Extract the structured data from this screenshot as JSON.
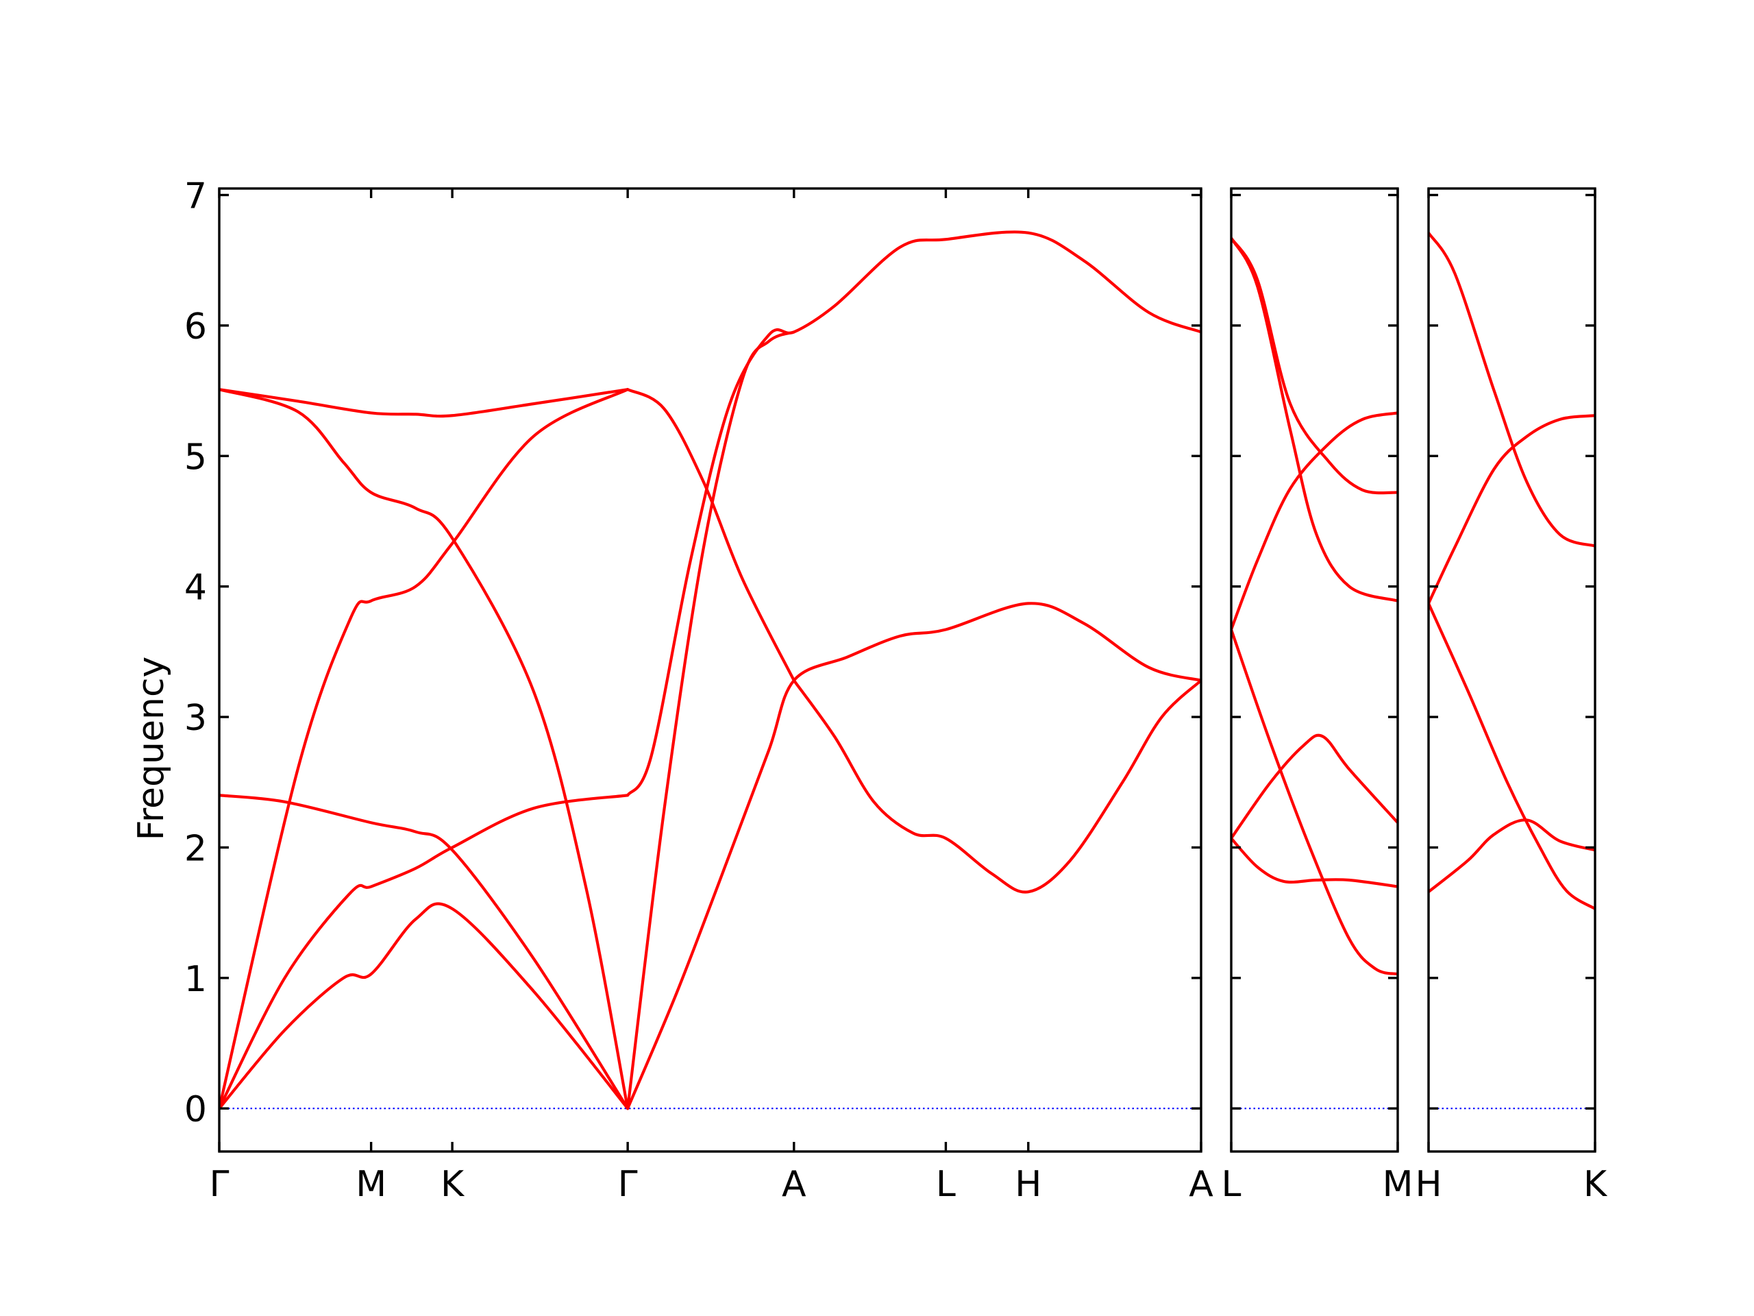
{
  "chart_data": {
    "type": "line",
    "ylabel": "Frequency",
    "ylim": [
      -0.33,
      7.05
    ],
    "yticks": [
      0,
      1,
      2,
      3,
      4,
      5,
      6,
      7
    ],
    "grid": false,
    "legend": "none",
    "colors": {
      "bands": "#ff0000",
      "zero_line": "#0000ff",
      "axes": "#000000"
    },
    "panels": [
      {
        "id": "p1",
        "xlim": [
          0,
          7.5
        ],
        "labels": [
          {
            "x": 0,
            "text": "Γ"
          },
          {
            "x": 1.16,
            "text": "M"
          },
          {
            "x": 1.78,
            "text": "K"
          },
          {
            "x": 3.12,
            "text": "Γ"
          },
          {
            "x": 4.39,
            "text": "A"
          },
          {
            "x": 5.55,
            "text": "L"
          },
          {
            "x": 6.18,
            "text": "H"
          },
          {
            "x": 7.5,
            "text": "A"
          }
        ],
        "series": [
          {
            "values": [
              [
                0,
                5.51
              ],
              [
                0.6,
                5.42
              ],
              [
                1.16,
                5.33
              ],
              [
                1.5,
                5.32
              ],
              [
                1.78,
                5.31
              ],
              [
                2.4,
                5.4
              ],
              [
                3.12,
                5.51
              ]
            ]
          },
          {
            "values": [
              [
                0,
                5.51
              ],
              [
                0.6,
                5.34
              ],
              [
                0.95,
                4.95
              ],
              [
                1.16,
                4.72
              ],
              [
                1.5,
                4.6
              ],
              [
                1.78,
                4.37
              ],
              [
                2.4,
                3.2
              ],
              [
                2.8,
                1.7
              ],
              [
                3.12,
                0
              ]
            ]
          },
          {
            "values": [
              [
                0,
                0
              ],
              [
                0.6,
                2.6
              ],
              [
                1.0,
                3.75
              ],
              [
                1.16,
                3.89
              ],
              [
                1.5,
                4.0
              ],
              [
                1.78,
                4.33
              ],
              [
                2.4,
                5.15
              ],
              [
                3.12,
                5.51
              ]
            ]
          },
          {
            "values": [
              [
                0,
                2.4
              ],
              [
                0.5,
                2.35
              ],
              [
                1.16,
                2.19
              ],
              [
                1.5,
                2.12
              ],
              [
                1.78,
                1.98
              ],
              [
                2.4,
                1.15
              ],
              [
                3.12,
                0
              ]
            ]
          },
          {
            "values": [
              [
                0,
                0
              ],
              [
                0.5,
                1.0
              ],
              [
                1.0,
                1.65
              ],
              [
                1.16,
                1.7
              ],
              [
                1.5,
                1.84
              ],
              [
                1.78,
                2.0
              ],
              [
                2.4,
                2.3
              ],
              [
                3.12,
                2.4
              ]
            ]
          },
          {
            "values": [
              [
                0,
                0
              ],
              [
                0.5,
                0.6
              ],
              [
                0.95,
                1.0
              ],
              [
                1.16,
                1.03
              ],
              [
                1.5,
                1.45
              ],
              [
                1.78,
                1.53
              ],
              [
                2.4,
                0.9
              ],
              [
                3.12,
                0
              ]
            ]
          },
          {
            "values": [
              [
                3.12,
                5.51
              ],
              [
                3.4,
                5.36
              ],
              [
                3.7,
                4.8
              ],
              [
                4.0,
                4.05
              ],
              [
                4.39,
                3.28
              ]
            ]
          },
          {
            "values": [
              [
                3.12,
                2.4
              ],
              [
                3.3,
                2.7
              ],
              [
                3.6,
                4.2
              ],
              [
                3.9,
                5.4
              ],
              [
                4.2,
                5.93
              ],
              [
                4.39,
                5.95
              ],
              [
                4.7,
                6.15
              ],
              [
                5.2,
                6.6
              ],
              [
                5.55,
                6.66
              ],
              [
                6.18,
                6.71
              ],
              [
                6.6,
                6.5
              ],
              [
                7.1,
                6.1
              ],
              [
                7.5,
                5.95
              ]
            ]
          },
          {
            "values": [
              [
                3.12,
                0
              ],
              [
                3.4,
                2.3
              ],
              [
                3.7,
                4.3
              ],
              [
                4.0,
                5.6
              ],
              [
                4.2,
                5.88
              ],
              [
                4.39,
                5.95
              ]
            ]
          },
          {
            "values": [
              [
                3.12,
                0
              ],
              [
                3.5,
                0.9
              ],
              [
                3.9,
                1.95
              ],
              [
                4.2,
                2.75
              ],
              [
                4.39,
                3.28
              ],
              [
                4.8,
                3.46
              ],
              [
                5.2,
                3.62
              ],
              [
                5.55,
                3.67
              ],
              [
                6.18,
                3.87
              ],
              [
                6.6,
                3.72
              ],
              [
                7.1,
                3.38
              ],
              [
                7.5,
                3.28
              ]
            ]
          },
          {
            "values": [
              [
                4.39,
                3.28
              ],
              [
                4.7,
                2.85
              ],
              [
                5.0,
                2.35
              ],
              [
                5.3,
                2.11
              ],
              [
                5.55,
                2.07
              ],
              [
                5.9,
                1.8
              ],
              [
                6.18,
                1.66
              ],
              [
                6.5,
                1.9
              ],
              [
                6.9,
                2.5
              ],
              [
                7.2,
                3.0
              ],
              [
                7.5,
                3.28
              ]
            ]
          }
        ]
      },
      {
        "id": "p2",
        "xlim": [
          0,
          1.27
        ],
        "labels": [
          {
            "x": 0,
            "text": "L"
          },
          {
            "x": 1.27,
            "text": "M"
          }
        ],
        "series": [
          {
            "values": [
              [
                0,
                6.67
              ],
              [
                0.2,
                6.35
              ],
              [
                0.45,
                5.4
              ],
              [
                0.75,
                4.95
              ],
              [
                1.0,
                4.74
              ],
              [
                1.27,
                4.72
              ]
            ]
          },
          {
            "values": [
              [
                0,
                6.67
              ],
              [
                0.2,
                6.3
              ],
              [
                0.45,
                5.2
              ],
              [
                0.65,
                4.4
              ],
              [
                0.9,
                4.0
              ],
              [
                1.27,
                3.89
              ]
            ]
          },
          {
            "values": [
              [
                0,
                3.67
              ],
              [
                0.2,
                4.2
              ],
              [
                0.45,
                4.75
              ],
              [
                0.75,
                5.1
              ],
              [
                1.0,
                5.28
              ],
              [
                1.27,
                5.33
              ]
            ]
          },
          {
            "values": [
              [
                0,
                3.67
              ],
              [
                0.3,
                2.8
              ],
              [
                0.6,
                2.0
              ],
              [
                0.9,
                1.3
              ],
              [
                1.1,
                1.07
              ],
              [
                1.27,
                1.03
              ]
            ]
          },
          {
            "values": [
              [
                0,
                2.07
              ],
              [
                0.3,
                2.5
              ],
              [
                0.55,
                2.78
              ],
              [
                0.7,
                2.85
              ],
              [
                0.9,
                2.6
              ],
              [
                1.27,
                2.19
              ]
            ]
          },
          {
            "values": [
              [
                0,
                2.07
              ],
              [
                0.2,
                1.85
              ],
              [
                0.4,
                1.74
              ],
              [
                0.65,
                1.75
              ],
              [
                0.9,
                1.75
              ],
              [
                1.27,
                1.7
              ]
            ]
          }
        ]
      },
      {
        "id": "p3",
        "xlim": [
          0,
          1.27
        ],
        "labels": [
          {
            "x": 0,
            "text": "H"
          },
          {
            "x": 1.27,
            "text": "K"
          }
        ],
        "series": [
          {
            "values": [
              [
                0,
                6.71
              ],
              [
                0.2,
                6.4
              ],
              [
                0.5,
                5.5
              ],
              [
                0.75,
                4.8
              ],
              [
                1.0,
                4.4
              ],
              [
                1.27,
                4.31
              ]
            ]
          },
          {
            "values": [
              [
                0,
                3.87
              ],
              [
                0.2,
                4.3
              ],
              [
                0.5,
                4.9
              ],
              [
                0.75,
                5.15
              ],
              [
                1.0,
                5.28
              ],
              [
                1.27,
                5.31
              ]
            ]
          },
          {
            "values": [
              [
                0,
                3.87
              ],
              [
                0.3,
                3.2
              ],
              [
                0.6,
                2.5
              ],
              [
                0.85,
                2.0
              ],
              [
                1.05,
                1.67
              ],
              [
                1.27,
                1.53
              ]
            ]
          },
          {
            "values": [
              [
                0,
                1.66
              ],
              [
                0.3,
                1.9
              ],
              [
                0.5,
                2.1
              ],
              [
                0.75,
                2.21
              ],
              [
                1.0,
                2.05
              ],
              [
                1.27,
                1.98
              ]
            ]
          }
        ]
      }
    ]
  }
}
